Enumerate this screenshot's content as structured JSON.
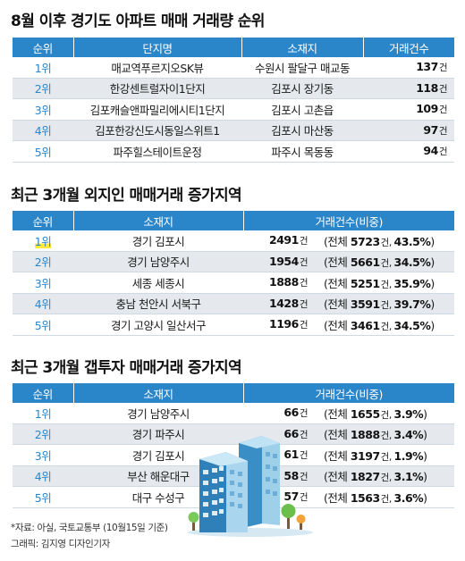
{
  "section1": {
    "title": "8월 이후 경기도 아파트 매매 거래량 순위",
    "headers": [
      "순위",
      "단지명",
      "소재지",
      "거래건수"
    ],
    "rows": [
      {
        "rank": "1위",
        "name": "매교역푸르지오SK뷰",
        "location": "수원시 팔달구 매교동",
        "count": "137",
        "unit": "건"
      },
      {
        "rank": "2위",
        "name": "한강센트럴자이1단지",
        "location": "김포시 장기동",
        "count": "118",
        "unit": "건"
      },
      {
        "rank": "3위",
        "name": "김포캐슬앤파밀리에시티1단지",
        "location": "김포시 고촌읍",
        "count": "109",
        "unit": "건"
      },
      {
        "rank": "4위",
        "name": "김포한강신도시동일스위트1",
        "location": "김포시 마산동",
        "count": "97",
        "unit": "건"
      },
      {
        "rank": "5위",
        "name": "파주힐스테이트운정",
        "location": "파주시 목동동",
        "count": "94",
        "unit": "건"
      }
    ]
  },
  "section2": {
    "title": "최근 3개월 외지인 매매거래 증가지역",
    "headers": [
      "순위",
      "소재지",
      "거래건수(비중)"
    ],
    "rows": [
      {
        "rank": "1위",
        "location": "경기 김포시",
        "count": "2491",
        "unit": "건",
        "total_prefix": "(전체 ",
        "total": "5723",
        "total_unit": "건, ",
        "share": "43.5%",
        "close": ")"
      },
      {
        "rank": "2위",
        "location": "경기 남양주시",
        "count": "1954",
        "unit": "건",
        "total_prefix": "(전체 ",
        "total": "5661",
        "total_unit": "건, ",
        "share": "34.5%",
        "close": ")"
      },
      {
        "rank": "3위",
        "location": "세종 세종시",
        "count": "1888",
        "unit": "건",
        "total_prefix": "(전체 ",
        "total": "5251",
        "total_unit": "건, ",
        "share": "35.9%",
        "close": ")"
      },
      {
        "rank": "4위",
        "location": "충남 천안시 서북구",
        "count": "1428",
        "unit": "건",
        "total_prefix": "(전체 ",
        "total": "3591",
        "total_unit": "건, ",
        "share": "39.7%",
        "close": ")"
      },
      {
        "rank": "5위",
        "location": "경기 고양시 일산서구",
        "count": "1196",
        "unit": "건",
        "total_prefix": "(전체 ",
        "total": "3461",
        "total_unit": "건, ",
        "share": "34.5%",
        "close": ")"
      }
    ]
  },
  "section3": {
    "title": "최근 3개월 갭투자 매매거래 증가지역",
    "headers": [
      "순위",
      "소재지",
      "거래건수(비중)"
    ],
    "rows": [
      {
        "rank": "1위",
        "location": "경기 남양주시",
        "count": "66",
        "unit": "건",
        "total_prefix": "(전체 ",
        "total": "1655",
        "total_unit": "건, ",
        "share": "3.9%",
        "close": ")"
      },
      {
        "rank": "2위",
        "location": "경기 파주시",
        "count": "66",
        "unit": "건",
        "total_prefix": "(전체 ",
        "total": "1888",
        "total_unit": "건, ",
        "share": "3.4%",
        "close": ")"
      },
      {
        "rank": "3위",
        "location": "경기 김포시",
        "count": "61",
        "unit": "건",
        "total_prefix": "(전체 ",
        "total": "3197",
        "total_unit": "건, ",
        "share": "1.9%",
        "close": ")"
      },
      {
        "rank": "4위",
        "location": "부산 해운대구",
        "count": "58",
        "unit": "건",
        "total_prefix": "(전체 ",
        "total": "1827",
        "total_unit": "건, ",
        "share": "3.1%",
        "close": ")"
      },
      {
        "rank": "5위",
        "location": "대구 수성구",
        "count": "57",
        "unit": "건",
        "total_prefix": "(전체 ",
        "total": "1563",
        "total_unit": "건, ",
        "share": "3.6%",
        "close": ")"
      }
    ]
  },
  "footer": {
    "source": "*자료: 아실, 국토교통부 (10월15일 기준)",
    "credit": "그래픽: 김지영 디자인기자"
  },
  "illustration": {
    "icon": "apartment-buildings-icon"
  },
  "colors": {
    "header_bg": "#2b86c9",
    "rank_text": "#2b86c9",
    "row_alt": "#e5e9ed",
    "highlight": "#ffe93a"
  }
}
